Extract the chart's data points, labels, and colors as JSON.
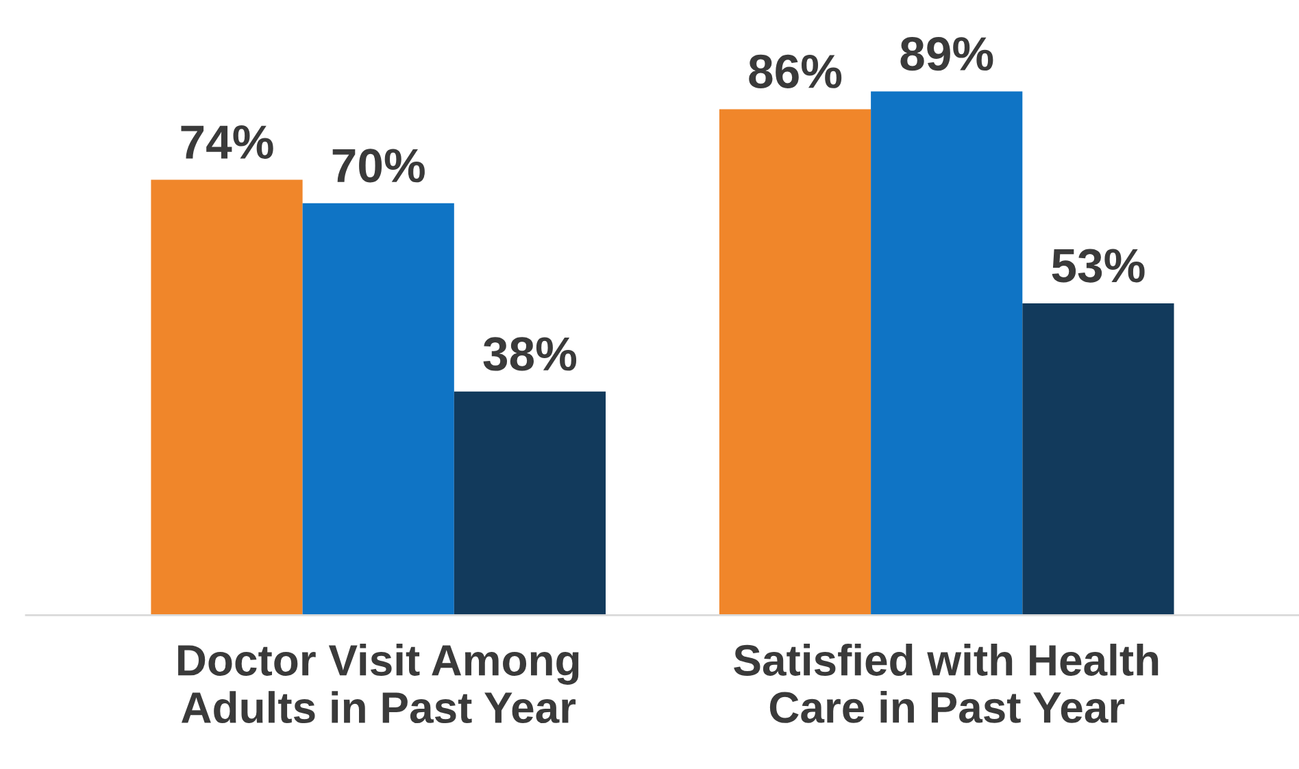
{
  "chart_data": {
    "type": "bar",
    "categories": [
      "Doctor Visit Among\nAdults in Past Year",
      "Satisfied with Health\nCare in Past Year"
    ],
    "series": [
      {
        "color": "#f0862a",
        "values": [
          74,
          86
        ],
        "value_labels": [
          "74%",
          "86%"
        ]
      },
      {
        "color": "#0f74c5",
        "values": [
          70,
          89
        ],
        "value_labels": [
          "70%",
          "89%"
        ]
      },
      {
        "color": "#123a5c",
        "values": [
          38,
          53
        ],
        "value_labels": [
          "38%",
          "53%"
        ]
      }
    ],
    "grid": false,
    "legend": false
  }
}
